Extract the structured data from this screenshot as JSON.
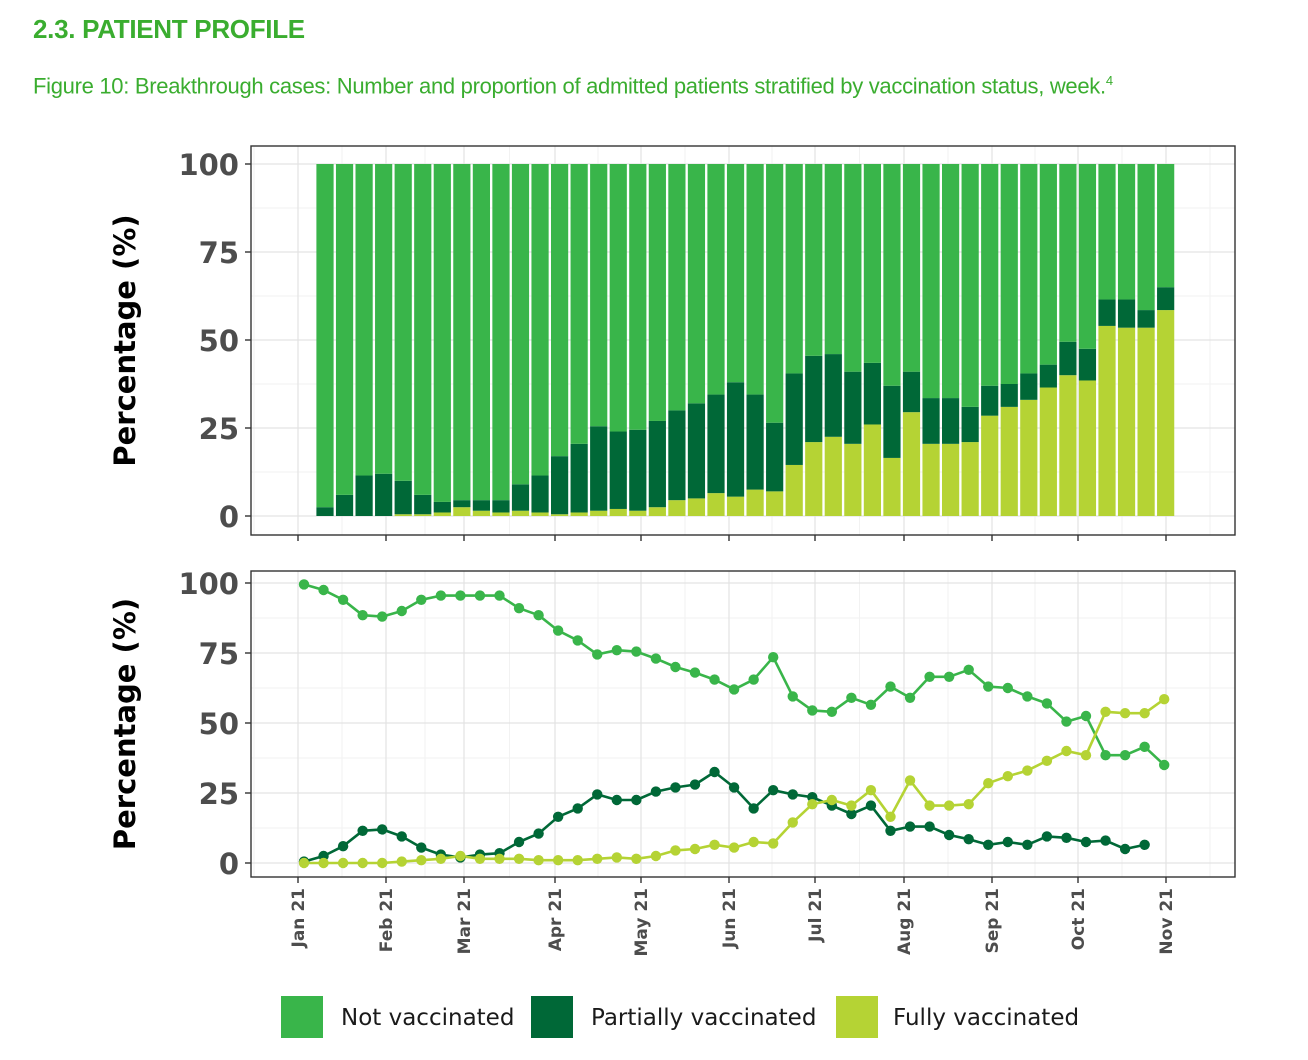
{
  "header": {
    "section_title": "2.3. PATIENT PROFILE",
    "caption": "Figure 10: Breakthrough cases: Number and proportion of admitted patients stratified by vaccination status, week.",
    "footnote_ref": "4"
  },
  "chart_data": [
    {
      "type": "bar",
      "stacked": true,
      "ylabel": "Percentage (%)",
      "ylim": [
        0,
        100
      ],
      "yticks": [
        0,
        25,
        50,
        75,
        100
      ],
      "grid": true,
      "x_month_labels": [
        "Jan 21",
        "Feb 21",
        "Mar 21",
        "Apr 21",
        "May 21",
        "Jun 21",
        "Jul 21",
        "Aug 21",
        "Sep 21",
        "Oct 21",
        "Nov 21"
      ],
      "series": [
        {
          "name": "Fully vaccinated",
          "color": "#b5d334",
          "values": [
            0,
            0,
            0,
            0,
            0.5,
            0.5,
            1,
            2.5,
            1.5,
            1,
            1.5,
            1,
            0.5,
            1,
            1.5,
            2,
            1.5,
            2.5,
            4.5,
            5,
            6.5,
            5.5,
            7.5,
            7,
            14.5,
            21,
            22.5,
            20.5,
            26,
            16.5,
            29.5,
            20.5,
            20.5,
            21,
            28.5,
            31,
            33,
            36.5,
            40,
            38.5,
            54,
            53.5,
            53.5,
            58.5
          ]
        },
        {
          "name": "Partially vaccinated",
          "color": "#006837",
          "values": [
            2.5,
            6,
            11.5,
            12,
            9.5,
            5.5,
            3,
            2,
            3,
            3.5,
            7.5,
            10.5,
            16.5,
            19.5,
            24,
            22,
            23,
            24.5,
            25.5,
            27,
            28,
            32.5,
            27,
            19.5,
            26,
            24.5,
            23.5,
            20.5,
            17.5,
            20.5,
            11.5,
            13,
            13,
            10,
            8.5,
            6.5,
            7.5,
            6.5,
            9.5,
            9,
            7.5,
            8,
            5,
            6.5
          ]
        },
        {
          "name": "Not vaccinated",
          "color": "#39b54a",
          "values": [
            97.5,
            94,
            88.5,
            88,
            90,
            94,
            96,
            95.5,
            95.5,
            95.5,
            91,
            88.5,
            83,
            79.5,
            74.5,
            76,
            75.5,
            73,
            70,
            68,
            65.5,
            62,
            65.5,
            73.5,
            59.5,
            54.5,
            54,
            59,
            56.5,
            63,
            59,
            66.5,
            66.5,
            69,
            63,
            62.5,
            59.5,
            57,
            50.5,
            52.5,
            38.5,
            38.5,
            41.5,
            35
          ]
        }
      ]
    },
    {
      "type": "line",
      "ylabel": "Percentage (%)",
      "ylim": [
        0,
        100
      ],
      "yticks": [
        0,
        25,
        50,
        75,
        100
      ],
      "grid": true,
      "x_month_labels": [
        "Jan 21",
        "Feb 21",
        "Mar 21",
        "Apr 21",
        "May 21",
        "Jun 21",
        "Jul 21",
        "Aug 21",
        "Sep 21",
        "Oct 21",
        "Nov 21"
      ],
      "series": [
        {
          "name": "Not vaccinated",
          "color": "#39b54a",
          "values": [
            99.5,
            97.5,
            94,
            88.5,
            88,
            90,
            94,
            95.5,
            95.5,
            95.5,
            95.5,
            91,
            88.5,
            83,
            79.5,
            74.5,
            76,
            75.5,
            73,
            70,
            68,
            65.5,
            62,
            65.5,
            73.5,
            59.5,
            54.5,
            54,
            59,
            56.5,
            63,
            59,
            66.5,
            66.5,
            69,
            63,
            62.5,
            59.5,
            57,
            50.5,
            52.5,
            38.5,
            38.5,
            41.5,
            35
          ]
        },
        {
          "name": "Partially vaccinated",
          "color": "#006837",
          "values": [
            0.5,
            2.5,
            6,
            11.5,
            12,
            9.5,
            5.5,
            3,
            2,
            3,
            3.5,
            7.5,
            10.5,
            16.5,
            19.5,
            24.5,
            22.5,
            22.5,
            25.5,
            27,
            28,
            32.5,
            27,
            19.5,
            26,
            24.5,
            23.5,
            20.5,
            17.5,
            20.5,
            11.5,
            13,
            13,
            10,
            8.5,
            6.5,
            7.5,
            6.5,
            9.5,
            9,
            7.5,
            8,
            5,
            6.5
          ]
        },
        {
          "name": "Fully vaccinated",
          "color": "#b5d334",
          "values": [
            0,
            0,
            0,
            0,
            0,
            0.5,
            1,
            1.5,
            2.5,
            1.5,
            1.5,
            1.5,
            1,
            1,
            1,
            1.5,
            2,
            1.5,
            2.5,
            4.5,
            5,
            6.5,
            5.5,
            7.5,
            7,
            14.5,
            21,
            22.5,
            20.5,
            26,
            16.5,
            29.5,
            20.5,
            20.5,
            21,
            28.5,
            31,
            33,
            36.5,
            40,
            38.5,
            54,
            53.5,
            53.5,
            58.5
          ]
        }
      ]
    }
  ],
  "legend": {
    "items": [
      {
        "label": "Not vaccinated",
        "color": "#39b54a"
      },
      {
        "label": "Partially vaccinated",
        "color": "#006837"
      },
      {
        "label": "Fully vaccinated",
        "color": "#b5d334"
      }
    ]
  }
}
